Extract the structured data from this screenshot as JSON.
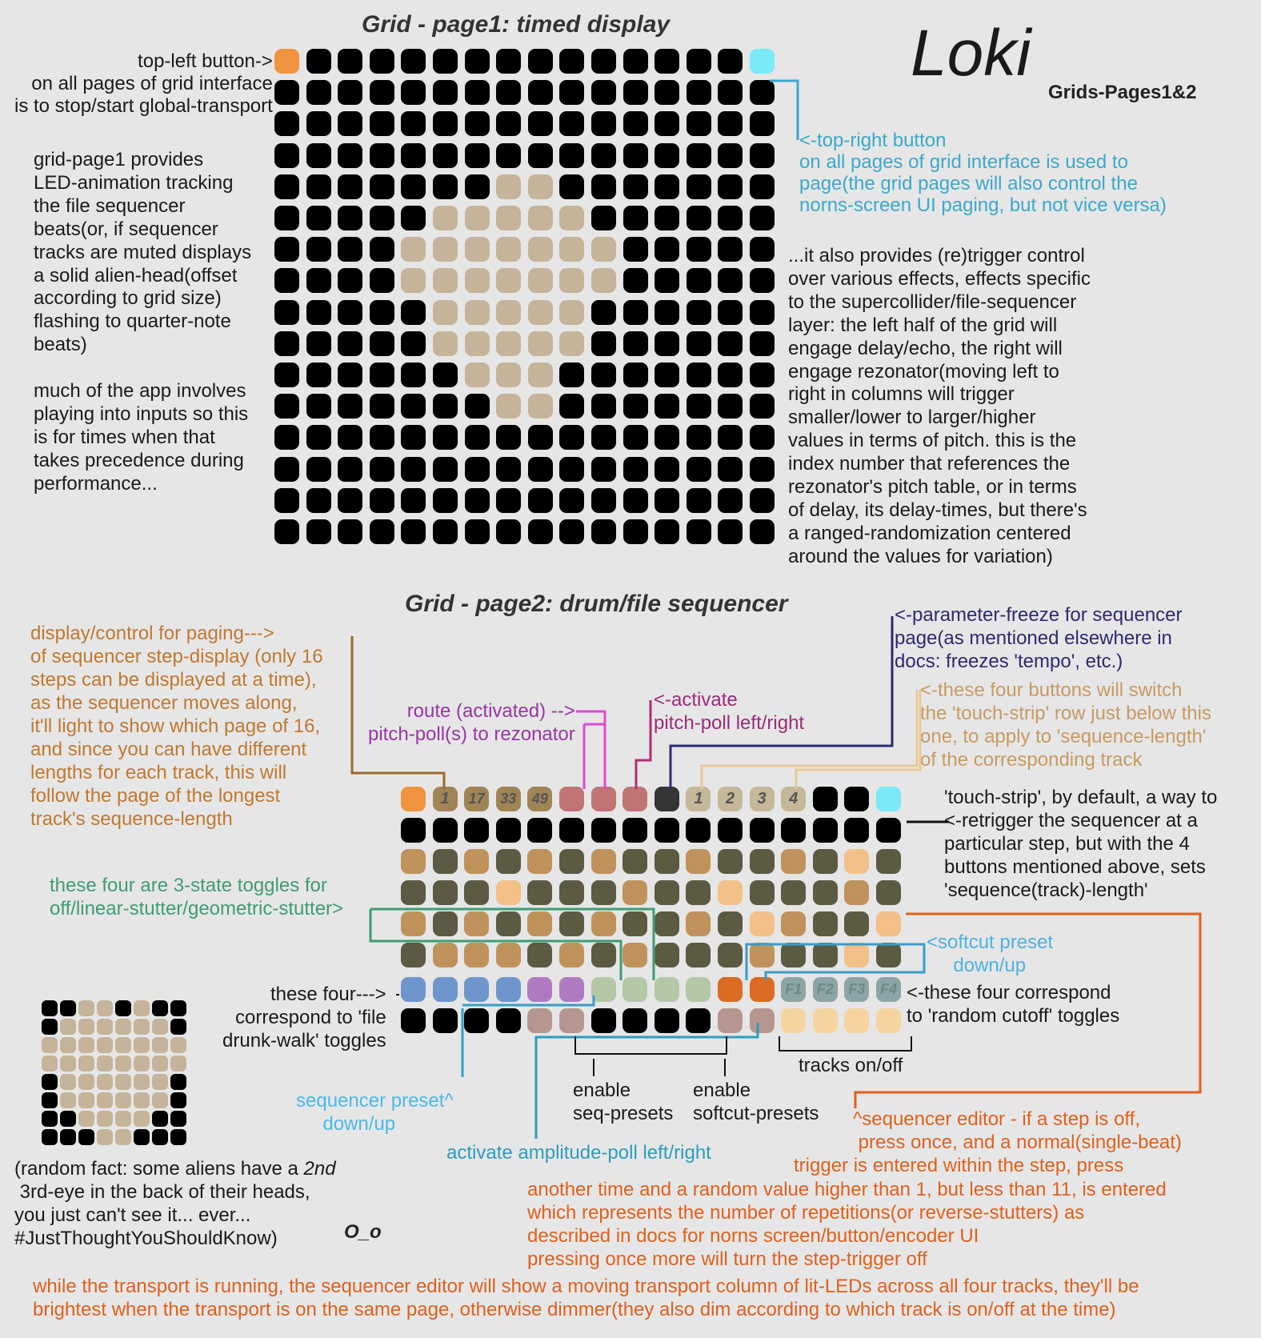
{
  "colors": {
    "background": "#e6e6e6",
    "led_off": "#000000",
    "led_alien": "#c5b49a",
    "top_left_button": "#f09440",
    "top_right_button": "#78eaf8",
    "seq_brown": "#bf925c",
    "seq_dark": "#5c5a42",
    "seq_peach": "#f2c088",
    "blue_toggle": "#6e96cc",
    "purple_toggle": "#b07ac0",
    "green_toggle": "#b4c8a8",
    "orange_toggle": "#dc6c24",
    "gray_toggle": "#8ca4a4",
    "mauve": "#b89690",
    "page_button": "#a08456",
    "pitch_button": "#c07474",
    "freeze_button": "#343434",
    "length_button": "#c4b898",
    "pale_peach": "#f6d4a0"
  },
  "header": {
    "app_title": "Loki",
    "app_subtitle": "Grids-Pages1&2"
  },
  "page1": {
    "title": "Grid - page1: timed display",
    "top_left_note": "top-left button->\non all pages of grid interface\nis to stop/start global-transport",
    "top_right_note": "<-top-right button\non all pages of grid interface is used to\npage(the grid pages will also control the\nnorns-screen UI paging, but not vice versa)",
    "left_description": "grid-page1 provides\nLED-animation tracking\nthe file sequencer\nbeats(or, if sequencer\ntracks are muted displays\na solid alien-head(offset\naccording to grid size)\nflashing to quarter-note\nbeats)\n\nmuch of the app involves\nplaying into inputs so this\nis for times when that\ntakes precedence during\nperformance...",
    "right_description": "...it also provides (re)trigger control\nover various effects, effects specific\nto the supercollider/file-sequencer\nlayer: the left half of the grid will\nengage delay/echo, the right will\nengage rezonator(moving left to\nright in columns will trigger\nsmaller/lower to larger/higher\nvalues in terms of pitch. this is the\nindex number that references the\nrezonator's pitch table, or in terms\nof delay, its delay-times, but there's\na ranged-randomization centered\naround the values for variation)",
    "alien_rows": [
      "0000000000000000",
      "0000000000000000",
      "0000000000000000",
      "0000000000000000",
      "0000000110000000",
      "0000011111000000",
      "0000111111100000",
      "0000111111100000",
      "0000011111000000",
      "0000011111000000",
      "0000001110000000",
      "0000000110000000",
      "0000000000000000",
      "0000000000000000",
      "0000000000000000",
      "0000000000000000"
    ]
  },
  "page2": {
    "title": "Grid - page2: drum/file sequencer",
    "top_row_labels": [
      "",
      "1",
      "17",
      "33",
      "49",
      "",
      "",
      "",
      "",
      "1",
      "2",
      "3",
      "4",
      "",
      "",
      ""
    ],
    "toggle_row_labels": [
      "",
      "",
      "",
      "",
      "",
      "",
      "",
      "",
      "",
      "",
      "",
      "",
      "F1",
      "F2",
      "F3",
      "F4"
    ],
    "rows": [
      [
        "O",
        "P",
        "P",
        "P",
        "P",
        "R",
        "R",
        "R",
        "K",
        "L",
        "L",
        "L",
        "L",
        "X",
        "X",
        "C"
      ],
      [
        "X",
        "X",
        "X",
        "X",
        "X",
        "X",
        "X",
        "X",
        "X",
        "X",
        "X",
        "X",
        "X",
        "X",
        "X",
        "X"
      ],
      [
        "B",
        "D",
        "B",
        "D",
        "B",
        "D",
        "B",
        "D",
        "D",
        "B",
        "D",
        "D",
        "B",
        "D",
        "E",
        "D"
      ],
      [
        "D",
        "D",
        "D",
        "E",
        "D",
        "D",
        "D",
        "B",
        "D",
        "D",
        "E",
        "D",
        "D",
        "D",
        "B",
        "D"
      ],
      [
        "B",
        "D",
        "B",
        "D",
        "B",
        "D",
        "B",
        "D",
        "D",
        "B",
        "D",
        "E",
        "B",
        "D",
        "D",
        "E"
      ],
      [
        "D",
        "B",
        "B",
        "B",
        "D",
        "B",
        "D",
        "B",
        "D",
        "D",
        "D",
        "B",
        "D",
        "D",
        "E",
        "D"
      ],
      [
        "U",
        "U",
        "U",
        "U",
        "V",
        "V",
        "G",
        "G",
        "G",
        "G",
        "N",
        "N",
        "Y",
        "Y",
        "Y",
        "Y"
      ],
      [
        "X",
        "X",
        "X",
        "X",
        "M",
        "M",
        "X",
        "X",
        "X",
        "X",
        "M",
        "M",
        "F",
        "F",
        "F",
        "F"
      ]
    ],
    "annotations": {
      "paging": "display/control for paging--->\nof sequencer step-display (only 16\nsteps can be displayed at a time),\nas the sequencer moves along,\nit'll light to show which page of 16,\nand since you can have different\nlengths for each track, this will\nfollow the page of the longest\ntrack's sequence-length",
      "route": "route (activated) -->\npitch-poll(s) to rezonator",
      "activate_pitch": "<-activate\npitch-poll left/right",
      "freeze": "<-parameter-freeze for sequencer\npage(as mentioned elsewhere in\ndocs: freezes 'tempo', etc.)",
      "four_buttons": "<-these four buttons will switch\nthe 'touch-strip' row just below this\none, to apply to 'sequence-length'\nof the corresponding track",
      "touch_strip": "'touch-strip', by default, a way to\n<-retrigger the sequencer at a\nparticular step, but with the 4\nbuttons mentioned above, sets\n'sequence(track)-length'",
      "three_state": "these four are 3-state toggles for\noff/linear-stutter/geometric-stutter>",
      "softcut_preset": "<softcut preset\n     down/up",
      "random_cutoff": "<-these four correspond\nto 'random cutoff' toggles",
      "drunk_walk": "these four--->\ncorrespond to 'file\ndrunk-walk' toggles",
      "tracks_onoff": "tracks on/off",
      "enable_seq": "enable\nseq-presets",
      "enable_softcut": "enable\nsoftcut-presets",
      "seq_preset": "sequencer preset^\n     down/up",
      "amplitude_poll": "activate amplitude-poll left/right",
      "seq_editor_top": "^sequencer editor - if a step is off,\n press once, and a normal(single-beat)",
      "seq_editor_mid": "trigger is entered within the step, press",
      "seq_editor_rest": "another time and a random value higher than 1, but less than 11, is entered\nwhich represents the number of repetitions(or reverse-stutters) as\ndescribed in docs for norns screen/button/encoder UI\npressing once more will turn the step-trigger off",
      "transport_note": "while the transport is running, the sequencer editor will show a moving transport column of lit-LEDs across all four tracks, they'll be\nbrightest when the transport is on the same page, otherwise dimmer(they also dim according to which track is on/off at the time)"
    }
  },
  "small_grid": {
    "rows": [
      "11001011",
      "10000001",
      "00000000",
      "00000000",
      "10000001",
      "10000001",
      "11000011",
      "11100111"
    ],
    "fact_line1": "(random fact: some aliens have a ",
    "fact_italic": "2nd",
    "fact_rest": " 3rd-eye in the back of their heads,\nyou just can't see it... ever...\n#JustThoughtYouShouldKnow)",
    "face": "O_o"
  }
}
